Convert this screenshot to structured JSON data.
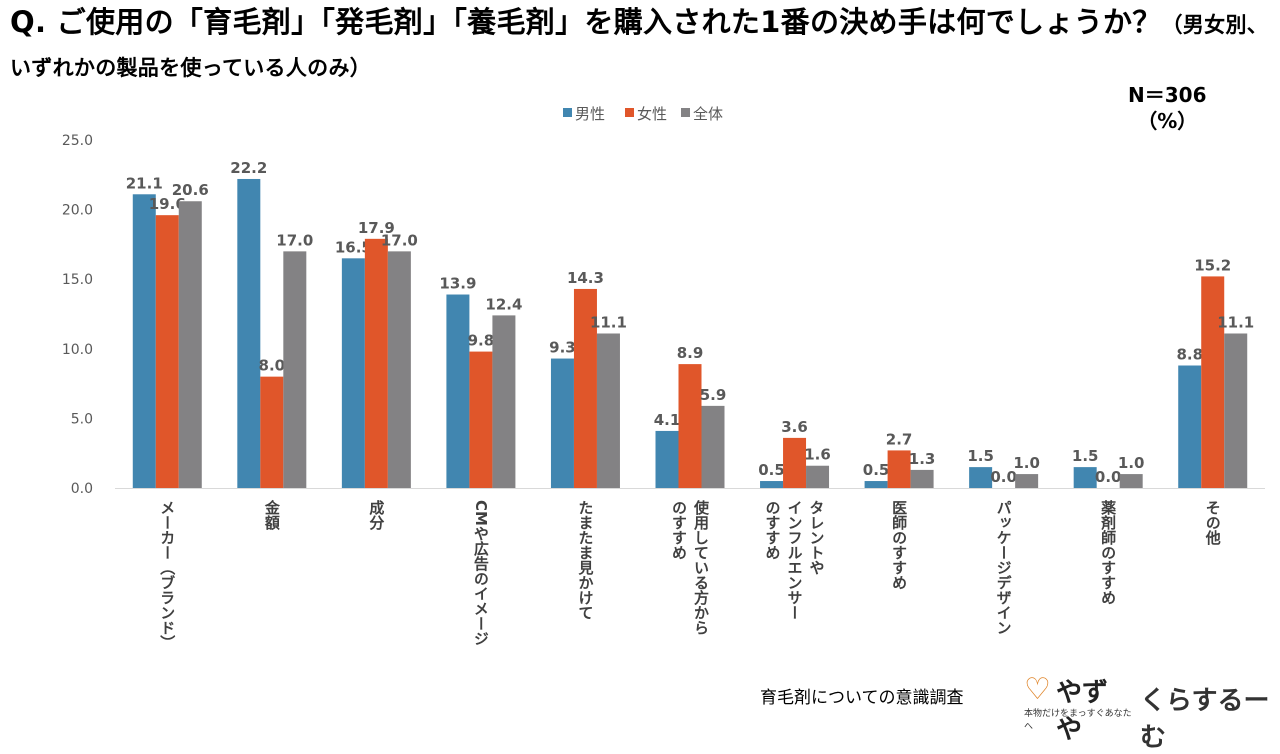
{
  "title_main": "Q. ご使用の「育毛剤」「発毛剤」「養毛剤」を購入された1番の決め手は何でしょうか？",
  "title_sub": "（男女別、いずれかの製品を使っている人のみ）",
  "n_label": "N＝306",
  "unit_label": "（%）",
  "footer_text": "育毛剤についての意識調査",
  "logo_yazuya": "やずや",
  "logo_yazuya_tagline": "本物だけをまっすぐあなたへ",
  "logo_kurasuru": "くらするーむ",
  "colors": {
    "male": "#4186b0",
    "female": "#e0562a",
    "total": "#838284"
  },
  "chart_data": {
    "type": "bar",
    "ylim": [
      0,
      25
    ],
    "yticks": [
      "0.0",
      "5.0",
      "10.0",
      "15.0",
      "20.0",
      "25.0"
    ],
    "legend_position": "top-center",
    "categories": [
      [
        "メーカー（ブランド）"
      ],
      [
        "金額"
      ],
      [
        "成分"
      ],
      [
        "CMや広告のイメージ"
      ],
      [
        "たまたま見かけて"
      ],
      [
        "使用している方から",
        "のすすめ"
      ],
      [
        "タレントや",
        "インフルエンサー",
        "のすすめ"
      ],
      [
        "医師のすすめ"
      ],
      [
        "パッケージデザイン"
      ],
      [
        "薬剤師のすすめ"
      ],
      [
        "その他"
      ]
    ],
    "series": [
      {
        "name": "男性",
        "key": "male",
        "values": [
          21.1,
          22.2,
          16.5,
          13.9,
          9.3,
          4.1,
          0.5,
          0.5,
          1.5,
          1.5,
          8.8
        ],
        "labels": [
          "21.1",
          "22.2",
          "16.5",
          "13.9",
          "9.3",
          "4.1",
          "0.5",
          "0.5",
          "1.5",
          "1.5",
          "8.8"
        ]
      },
      {
        "name": "女性",
        "key": "female",
        "values": [
          19.6,
          8.0,
          17.9,
          9.8,
          14.3,
          8.9,
          3.6,
          2.7,
          0.0,
          0.0,
          15.2
        ],
        "labels": [
          "19.6",
          "8.0",
          "17.9",
          "9.8",
          "14.3",
          "8.9",
          "3.6",
          "2.7",
          "0.0",
          "0.0",
          "15.2"
        ]
      },
      {
        "name": "全体",
        "key": "total",
        "values": [
          20.6,
          17.0,
          17.0,
          12.4,
          11.1,
          5.9,
          1.6,
          1.3,
          1.0,
          1.0,
          11.1
        ],
        "labels": [
          "20.6",
          "17.0",
          "17.0",
          "12.4",
          "11.1",
          "5.9",
          "1.6",
          "1.3",
          "1.0",
          "1.0",
          "11.1"
        ]
      }
    ]
  }
}
